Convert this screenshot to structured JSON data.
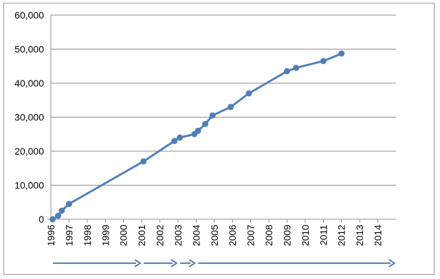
{
  "chart_data": {
    "type": "line",
    "title": "",
    "xlabel": "",
    "ylabel": "",
    "xlim": [
      1996,
      2015
    ],
    "ylim": [
      0,
      60000
    ],
    "y_ticks": [
      "0",
      "10,000",
      "20,000",
      "30,000",
      "40,000",
      "50,000",
      "60,000"
    ],
    "y_tick_values": [
      0,
      10000,
      20000,
      30000,
      40000,
      50000,
      60000
    ],
    "x_ticks": [
      "1996",
      "1997",
      "1998",
      "1999",
      "2000",
      "2001",
      "2002",
      "2003",
      "2004",
      "2005",
      "2006",
      "2007",
      "2008",
      "2009",
      "2010",
      "2011",
      "2012",
      "2013",
      "2014"
    ],
    "x_tick_values": [
      1996,
      1997,
      1998,
      1999,
      2000,
      2001,
      2002,
      2003,
      2004,
      2005,
      2006,
      2007,
      2008,
      2009,
      2010,
      2011,
      2012,
      2013,
      2014
    ],
    "grid": true,
    "legend": "none",
    "series": [
      {
        "color": "#4f7fb9",
        "x": [
          1996.1,
          1996.4,
          1996.6,
          1997.0,
          2001.1,
          2002.8,
          2003.1,
          2003.9,
          2004.1,
          2004.5,
          2004.9,
          2005.9,
          2006.9,
          2009.0,
          2009.5,
          2011.0,
          2012.0
        ],
        "y": [
          0,
          1000,
          2500,
          4500,
          17000,
          23000,
          24000,
          25000,
          26000,
          28000,
          30500,
          33000,
          37000,
          43500,
          44500,
          46500,
          48700
        ]
      }
    ],
    "timeline_arrows": [
      {
        "from": 1996,
        "to": 2001
      },
      {
        "from": 2001,
        "to": 2003
      },
      {
        "from": 2003,
        "to": 2004
      },
      {
        "from": 2004,
        "to": 2015
      }
    ],
    "arrow_color": "#4f7fb9"
  }
}
